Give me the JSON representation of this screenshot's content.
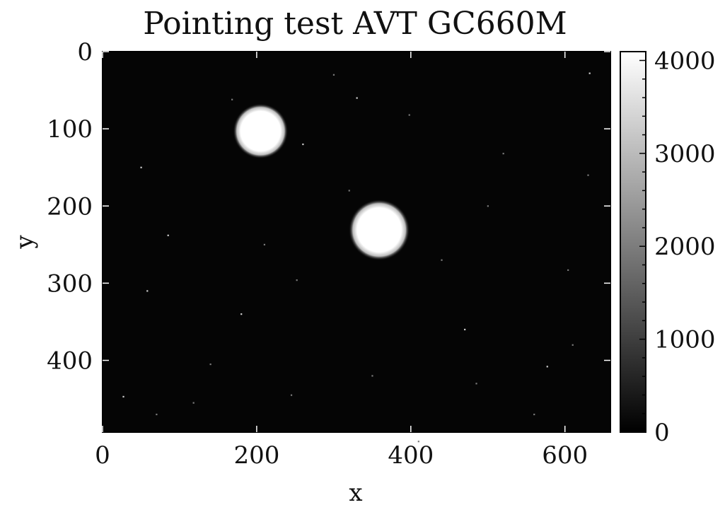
{
  "chart_data": {
    "type": "heatmap",
    "title": "Pointing test AVT GC660M",
    "xlabel": "x",
    "ylabel": "y",
    "xlim": [
      0,
      659
    ],
    "ylim": [
      493,
      0
    ],
    "x_ticks": [
      0,
      200,
      400,
      600
    ],
    "y_ticks": [
      0,
      100,
      200,
      300,
      400
    ],
    "colormap": "gray",
    "colorbar": {
      "min": 0,
      "max": 4095,
      "ticks": [
        0,
        1000,
        2000,
        3000,
        4000
      ]
    },
    "background_level": 80,
    "spots": [
      {
        "x": 205,
        "y": 103,
        "radius": 28,
        "value": 4095
      },
      {
        "x": 359,
        "y": 231,
        "radius": 31,
        "value": 4095
      }
    ],
    "hot_pixels": [
      [
        58,
        310
      ],
      [
        140,
        405
      ],
      [
        118,
        455
      ],
      [
        27,
        447
      ],
      [
        168,
        62
      ],
      [
        320,
        180
      ],
      [
        470,
        360
      ],
      [
        520,
        132
      ],
      [
        604,
        283
      ],
      [
        632,
        28
      ],
      [
        560,
        470
      ],
      [
        410,
        505
      ],
      [
        85,
        238
      ],
      [
        252,
        296
      ],
      [
        398,
        82
      ],
      [
        577,
        408
      ],
      [
        245,
        445
      ],
      [
        300,
        30
      ],
      [
        50,
        150
      ],
      [
        440,
        270
      ],
      [
        610,
        380
      ],
      [
        180,
        340
      ],
      [
        350,
        420
      ],
      [
        500,
        200
      ],
      [
        260,
        120
      ],
      [
        70,
        470
      ],
      [
        630,
        160
      ],
      [
        330,
        60
      ],
      [
        485,
        430
      ],
      [
        210,
        250
      ]
    ],
    "grid": false,
    "legend": "none"
  }
}
